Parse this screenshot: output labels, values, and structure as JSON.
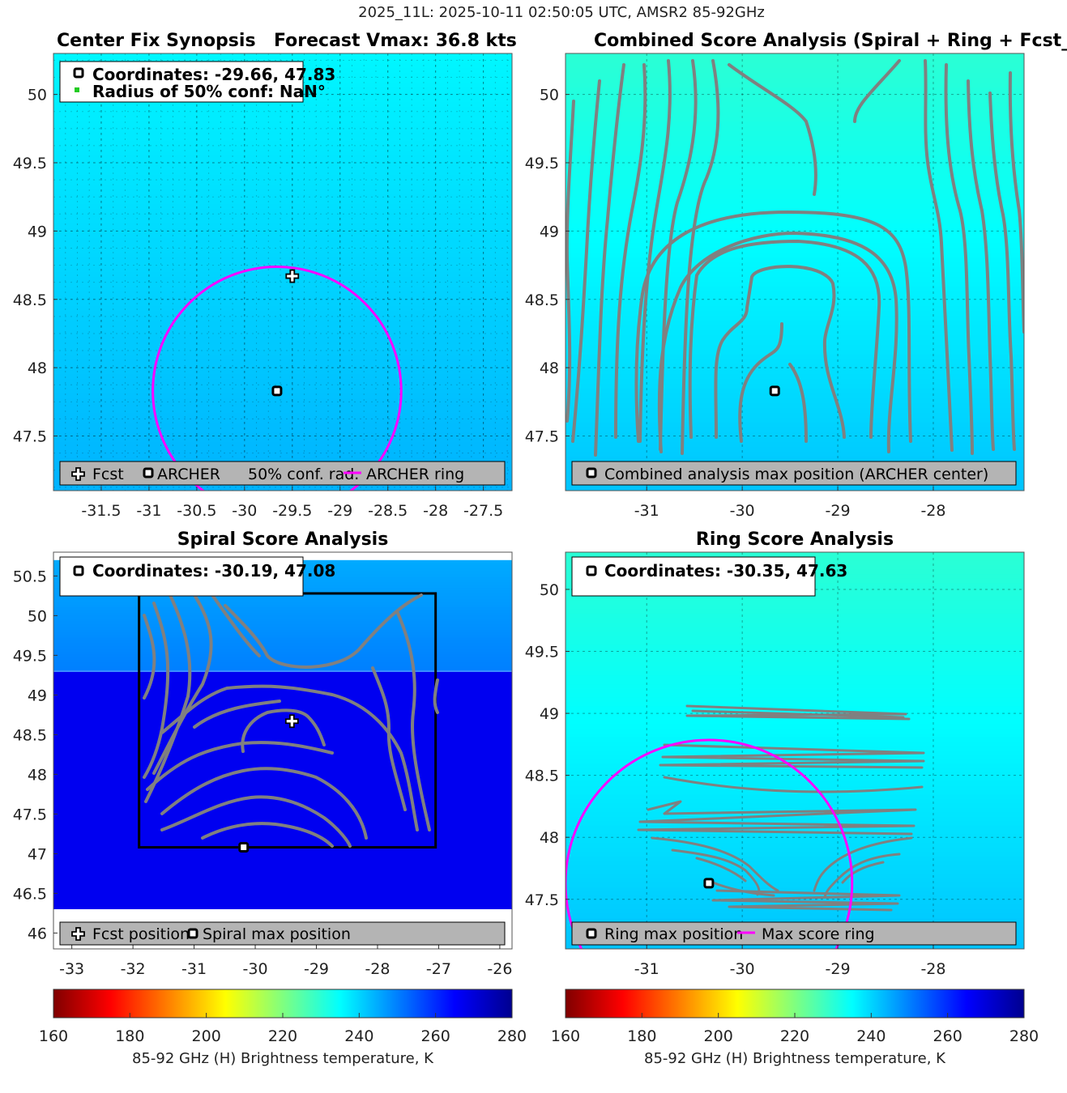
{
  "figure_title": "2025_11L: 2025-10-11 02:50:05 UTC, AMSR2 85-92GHz",
  "colorbar": {
    "label": "85-92 GHz (H) Brightness temperature, K",
    "ticks": [
      160,
      180,
      200,
      220,
      240,
      260,
      280
    ]
  },
  "colors": {
    "ring": "#ff00ff",
    "contour": "#808080",
    "legend_bg": "#b4b4b4"
  },
  "chart_data": [
    {
      "type": "heatmap",
      "panel": "center_fix_synopsis",
      "title_left": "Center Fix Synopsis",
      "title_right": "Forecast Vmax: 36.8 kts",
      "xlim": [
        -32,
        -27.2
      ],
      "ylim": [
        47.1,
        50.3
      ],
      "xticks": [
        -31.5,
        -31,
        -30.5,
        -30,
        -29.5,
        -29,
        -28.5,
        -28,
        -27.5
      ],
      "yticks": [
        47.5,
        48,
        48.5,
        49,
        49.5,
        50
      ],
      "xtick_labels": [
        "-31.5",
        "-31",
        "-30.5",
        "-30",
        "-29.5",
        "-29",
        "-28.5",
        "-28",
        "-27.5"
      ],
      "ytick_labels": [
        "47.5",
        "48",
        "48.5",
        "49",
        "49.5",
        "50"
      ],
      "grid": true,
      "field_temp_K": {
        "top": 236,
        "bottom": 244
      },
      "info_lines": [
        "Coordinates: -29.66, 47.83",
        "Radius of 50% conf: NaN°"
      ],
      "legend": [
        "Fcst",
        "ARCHER",
        "50% conf. rad.",
        "ARCHER ring"
      ],
      "points": {
        "fcst": [
          -29.5,
          48.67
        ],
        "archer": [
          -29.66,
          47.83
        ]
      },
      "ring": {
        "center": [
          -29.66,
          47.83
        ],
        "radius_deg": 1.3
      }
    },
    {
      "type": "heatmap",
      "panel": "combined_score_analysis",
      "title": "Combined Score Analysis (Spiral + Ring + Fcst_Pe",
      "xlim": [
        -31.85,
        -27.05
      ],
      "ylim": [
        47.1,
        50.3
      ],
      "xticks": [
        -31,
        -30,
        -29,
        -28
      ],
      "yticks": [
        47.5,
        48,
        48.5,
        49,
        49.5,
        50
      ],
      "xtick_labels": [
        "-31",
        "-30",
        "-29",
        "-28"
      ],
      "ytick_labels": [
        "47.5",
        "48",
        "48.5",
        "49",
        "49.5",
        "50"
      ],
      "grid": true,
      "field_temp_K": {
        "top": 230,
        "bottom": 242
      },
      "legend": [
        "Combined analysis max position (ARCHER center)"
      ],
      "points": {
        "archer": [
          -29.66,
          47.83
        ]
      }
    },
    {
      "type": "heatmap",
      "panel": "spiral_score_analysis",
      "title": "Spiral Score Analysis",
      "xlim": [
        -33.3,
        -25.8
      ],
      "ylim": [
        45.8,
        50.8
      ],
      "xticks": [
        -33,
        -32,
        -31,
        -30,
        -29,
        -28,
        -27,
        -26
      ],
      "yticks": [
        46,
        46.5,
        47,
        47.5,
        48,
        48.5,
        49,
        49.5,
        50,
        50.5
      ],
      "xtick_labels": [
        "-33",
        "-32",
        "-31",
        "-30",
        "-29",
        "-28",
        "-27",
        "-26"
      ],
      "ytick_labels": [
        "46",
        "46.5",
        "47",
        "47.5",
        "48",
        "48.5",
        "49",
        "49.5",
        "50",
        "50.5"
      ],
      "grid": false,
      "data_extent": {
        "lat_min": 46.3,
        "lat_max": 50.7
      },
      "field_temp_K": {
        "top": 245,
        "upper_mid": 250,
        "boundary_lat": 49.3,
        "lower": 267
      },
      "info_lines": [
        "Coordinates: -30.19, 47.08"
      ],
      "legend": [
        "Fcst position",
        "Spiral max position"
      ],
      "search_box": {
        "lon": [
          -31.9,
          -27.05
        ],
        "lat": [
          47.08,
          50.28
        ]
      },
      "points": {
        "fcst": [
          -29.4,
          48.67
        ],
        "spiral_max": [
          -30.19,
          47.08
        ]
      }
    },
    {
      "type": "heatmap",
      "panel": "ring_score_analysis",
      "title": "Ring Score Analysis",
      "xlim": [
        -31.85,
        -27.05
      ],
      "ylim": [
        47.1,
        50.3
      ],
      "xticks": [
        -31,
        -30,
        -29,
        -28
      ],
      "yticks": [
        47.5,
        48,
        48.5,
        49,
        49.5,
        50
      ],
      "xtick_labels": [
        "-31",
        "-30",
        "-29",
        "-28"
      ],
      "ytick_labels": [
        "47.5",
        "48",
        "48.5",
        "49",
        "49.5",
        "50"
      ],
      "grid": true,
      "field_temp_K": {
        "top": 230,
        "bottom": 242
      },
      "info_lines": [
        "Coordinates: -30.35, 47.63"
      ],
      "legend": [
        "Ring max position",
        "Max score ring"
      ],
      "points": {
        "ring_max": [
          -30.35,
          47.63
        ]
      },
      "ring": {
        "center": [
          -30.35,
          47.63
        ],
        "radius_deg": 1.5
      }
    }
  ]
}
